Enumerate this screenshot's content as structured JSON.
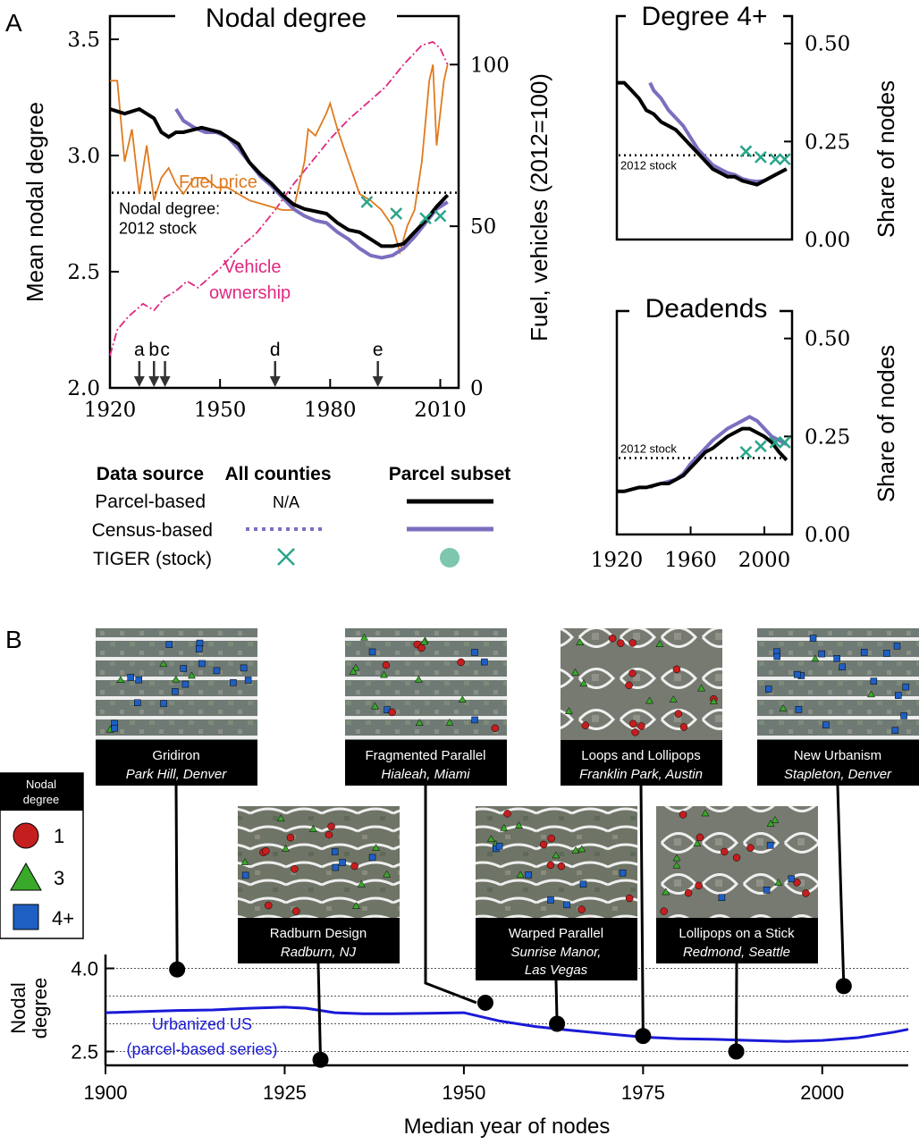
{
  "panel_a_label": "A",
  "panel_b_label": "B",
  "chart_data": [
    {
      "type": "line",
      "title": "Nodal degree",
      "xlabel": "",
      "ylabel": "Mean nodal degree",
      "y2label": "Fuel, vehicles (2012=100)",
      "xlim": [
        1920,
        2015
      ],
      "ylim": [
        2.0,
        3.6
      ],
      "y2lim": [
        0,
        115
      ],
      "xticks": [
        1920,
        1950,
        1980,
        2010
      ],
      "yticks": [
        2.0,
        2.5,
        3.0,
        3.5
      ],
      "y2ticks": [
        0,
        50,
        100
      ],
      "reference_line": {
        "y": 2.84,
        "label_lines": [
          "Nodal degree:",
          "2012 stock"
        ]
      },
      "annotations": {
        "fuel": "Fuel price",
        "vehicle_lines": [
          "Vehicle",
          "ownership"
        ]
      },
      "event_markers": [
        {
          "label": "a",
          "x": 1928
        },
        {
          "label": "b",
          "x": 1932
        },
        {
          "label": "c",
          "x": 1935
        },
        {
          "label": "d",
          "x": 1965
        },
        {
          "label": "e",
          "x": 1993
        }
      ],
      "colors": {
        "parcel": "#000000",
        "census": "#7b6fbf",
        "fuel": "#e07a1e",
        "vehicle": "#e0287f",
        "tiger": "#2aa58a"
      },
      "series": [
        {
          "key": "parcel",
          "x": [
            1920,
            1924,
            1928,
            1932,
            1934,
            1936,
            1938,
            1940,
            1945,
            1950,
            1955,
            1958,
            1961,
            1964,
            1967,
            1970,
            1973,
            1976,
            1979,
            1982,
            1985,
            1988,
            1991,
            1994,
            1997,
            2000,
            2003,
            2006,
            2009,
            2012
          ],
          "y": [
            3.2,
            3.18,
            3.2,
            3.16,
            3.1,
            3.08,
            3.1,
            3.1,
            3.12,
            3.1,
            3.05,
            2.97,
            2.92,
            2.88,
            2.83,
            2.79,
            2.77,
            2.76,
            2.75,
            2.71,
            2.68,
            2.67,
            2.64,
            2.61,
            2.61,
            2.62,
            2.67,
            2.72,
            2.78,
            2.83
          ]
        },
        {
          "key": "census",
          "x": [
            1938,
            1940,
            1943,
            1946,
            1949,
            1952,
            1955,
            1958,
            1961,
            1964,
            1967,
            1970,
            1973,
            1976,
            1979,
            1982,
            1985,
            1988,
            1991,
            1994,
            1997,
            2000,
            2003,
            2006,
            2009,
            2012
          ],
          "y": [
            3.2,
            3.15,
            3.12,
            3.1,
            3.1,
            3.08,
            3.03,
            2.97,
            2.91,
            2.87,
            2.82,
            2.77,
            2.74,
            2.72,
            2.71,
            2.67,
            2.64,
            2.6,
            2.57,
            2.56,
            2.57,
            2.6,
            2.65,
            2.71,
            2.77,
            2.8
          ]
        },
        {
          "key": "fuel",
          "x": [
            1920,
            1922,
            1924,
            1926,
            1928,
            1930,
            1932,
            1934,
            1936,
            1938,
            1940,
            1943,
            1946,
            1949,
            1952,
            1955,
            1958,
            1961,
            1964,
            1967,
            1970,
            1973,
            1974,
            1976,
            1979,
            1980,
            1982,
            1985,
            1988,
            1991,
            1994,
            1997,
            1999,
            2001,
            2003,
            2005,
            2007,
            2008,
            2009,
            2011,
            2012
          ],
          "y": [
            95,
            95,
            70,
            80,
            60,
            75,
            58,
            65,
            68,
            63,
            60,
            65,
            65,
            62,
            62,
            60,
            58,
            57,
            56,
            55,
            55,
            70,
            80,
            78,
            85,
            88,
            80,
            70,
            60,
            58,
            55,
            50,
            42,
            50,
            55,
            70,
            95,
            100,
            75,
            95,
            100
          ]
        },
        {
          "key": "vehicle",
          "x": [
            1920,
            1922,
            1925,
            1929,
            1932,
            1935,
            1938,
            1941,
            1944,
            1947,
            1950,
            1955,
            1960,
            1965,
            1970,
            1975,
            1980,
            1985,
            1990,
            1995,
            2000,
            2005,
            2008,
            2010,
            2012
          ],
          "y": [
            10,
            18,
            22,
            26,
            24,
            28,
            30,
            33,
            31,
            34,
            37,
            43,
            48,
            55,
            63,
            70,
            77,
            83,
            88,
            93,
            100,
            106,
            107,
            105,
            100
          ]
        },
        {
          "key": "tiger",
          "x": [
            1990,
            1998,
            2006,
            2010
          ],
          "y": [
            2.8,
            2.75,
            2.73,
            2.74
          ]
        }
      ]
    },
    {
      "type": "line",
      "title": "Degree 4+",
      "ylabel": "Share of nodes",
      "xlim": [
        1920,
        2015
      ],
      "ylim": [
        0.0,
        0.57
      ],
      "yticks_labels": [
        "0.00",
        "0.25",
        "0.50"
      ],
      "yticks": [
        0.0,
        0.25,
        0.5
      ],
      "reference_line": {
        "y": 0.215,
        "label": "2012 stock"
      },
      "series": [
        {
          "key": "parcel",
          "x": [
            1920,
            1924,
            1928,
            1932,
            1936,
            1940,
            1944,
            1948,
            1952,
            1956,
            1960,
            1964,
            1968,
            1972,
            1976,
            1980,
            1984,
            1988,
            1992,
            1996,
            2000,
            2004,
            2008,
            2012
          ],
          "y": [
            0.4,
            0.4,
            0.38,
            0.36,
            0.33,
            0.32,
            0.3,
            0.29,
            0.28,
            0.26,
            0.24,
            0.22,
            0.2,
            0.18,
            0.17,
            0.16,
            0.16,
            0.15,
            0.145,
            0.14,
            0.15,
            0.16,
            0.17,
            0.18
          ]
        },
        {
          "key": "census",
          "x": [
            1938,
            1940,
            1944,
            1948,
            1952,
            1956,
            1960,
            1964,
            1968,
            1972,
            1976,
            1980,
            1984,
            1988,
            1992,
            1996,
            2000,
            2004,
            2008,
            2012
          ],
          "y": [
            0.4,
            0.38,
            0.36,
            0.33,
            0.31,
            0.29,
            0.26,
            0.23,
            0.21,
            0.19,
            0.18,
            0.17,
            0.165,
            0.155,
            0.15,
            0.148,
            0.15,
            0.16,
            0.17,
            0.18
          ]
        },
        {
          "key": "tiger",
          "x": [
            1990,
            1998,
            2006,
            2011
          ],
          "y": [
            0.225,
            0.21,
            0.205,
            0.205
          ]
        }
      ]
    },
    {
      "type": "line",
      "title": "Deadends",
      "ylabel": "Share of nodes",
      "xlim": [
        1920,
        2015
      ],
      "xticks": [
        1920,
        1960,
        2000
      ],
      "ylim": [
        0.0,
        0.57
      ],
      "yticks_labels": [
        "0.00",
        "0.25",
        "0.50"
      ],
      "yticks": [
        0.0,
        0.25,
        0.5
      ],
      "reference_line": {
        "y": 0.195,
        "label": "2012 stock"
      },
      "series": [
        {
          "key": "parcel",
          "x": [
            1920,
            1924,
            1928,
            1932,
            1936,
            1940,
            1944,
            1948,
            1952,
            1956,
            1960,
            1964,
            1968,
            1972,
            1976,
            1980,
            1984,
            1988,
            1992,
            1996,
            2000,
            2004,
            2008,
            2012
          ],
          "y": [
            0.11,
            0.11,
            0.115,
            0.12,
            0.12,
            0.125,
            0.13,
            0.13,
            0.14,
            0.15,
            0.17,
            0.19,
            0.21,
            0.22,
            0.235,
            0.25,
            0.26,
            0.27,
            0.27,
            0.26,
            0.25,
            0.235,
            0.21,
            0.19
          ]
        },
        {
          "key": "census",
          "x": [
            1938,
            1940,
            1944,
            1948,
            1952,
            1956,
            1960,
            1964,
            1968,
            1972,
            1976,
            1980,
            1984,
            1988,
            1992,
            1996,
            2000,
            2004,
            2008,
            2012
          ],
          "y": [
            0.12,
            0.125,
            0.13,
            0.135,
            0.14,
            0.155,
            0.18,
            0.2,
            0.22,
            0.24,
            0.255,
            0.27,
            0.28,
            0.29,
            0.3,
            0.29,
            0.27,
            0.25,
            0.24,
            0.23
          ]
        },
        {
          "key": "tiger",
          "x": [
            1990,
            1998,
            2006,
            2011
          ],
          "y": [
            0.21,
            0.225,
            0.235,
            0.235
          ]
        }
      ]
    },
    {
      "type": "line",
      "title": "",
      "xlabel": "Median year of nodes",
      "ylabel_lines": [
        "Nodal",
        "degree"
      ],
      "xlim": [
        1900,
        2012
      ],
      "xticks": [
        1900,
        1925,
        1950,
        1975,
        2000
      ],
      "ylim": [
        2.25,
        4.25
      ],
      "yticks": [
        2.5,
        4.0
      ],
      "ytick_labels": [
        "2.5",
        "4.0"
      ],
      "gridlines": [
        2.5,
        3.0,
        3.5,
        4.0
      ],
      "series_label_lines": [
        "Urbanized US",
        "(parcel-based series)"
      ],
      "series_color": "#1a1ad6",
      "series": [
        {
          "key": "urbanized",
          "x": [
            1900,
            1905,
            1910,
            1915,
            1920,
            1925,
            1928,
            1932,
            1936,
            1940,
            1945,
            1950,
            1955,
            1960,
            1965,
            1970,
            1975,
            1980,
            1985,
            1990,
            1995,
            2000,
            2005,
            2010,
            2012
          ],
          "y": [
            3.2,
            3.22,
            3.24,
            3.25,
            3.28,
            3.3,
            3.28,
            3.2,
            3.18,
            3.18,
            3.19,
            3.2,
            3.05,
            2.95,
            2.88,
            2.82,
            2.76,
            2.73,
            2.72,
            2.7,
            2.68,
            2.7,
            2.75,
            2.85,
            2.9
          ]
        }
      ],
      "points": [
        {
          "x": 1910,
          "y": 3.98
        },
        {
          "x": 1930,
          "y": 2.35
        },
        {
          "x": 1953,
          "y": 3.38
        },
        {
          "x": 1963,
          "y": 3.0
        },
        {
          "x": 1975,
          "y": 2.78
        },
        {
          "x": 1988,
          "y": 2.5
        },
        {
          "x": 2003,
          "y": 3.68
        }
      ]
    }
  ],
  "legend": {
    "headers": [
      "Data source",
      "All counties",
      "Parcel subset"
    ],
    "rows": [
      {
        "label": "Parcel-based",
        "all": "N/A"
      },
      {
        "label": "Census-based"
      },
      {
        "label": "TIGER (stock)"
      }
    ]
  },
  "node_legend": {
    "title_lines": [
      "Nodal",
      "degree"
    ],
    "items": [
      "1",
      "3",
      "4+"
    ],
    "colors": {
      "1": "#c41e1e",
      "3": "#3aa82a",
      "4+": "#1e5fc4"
    }
  },
  "neighborhoods": [
    {
      "name": "Gridiron",
      "place": "Park Hill, Denver"
    },
    {
      "name": "Fragmented Parallel",
      "place": "Hialeah, Miami"
    },
    {
      "name": "Loops and Lollipops",
      "place": "Franklin Park, Austin"
    },
    {
      "name": "New Urbanism",
      "place": "Stapleton, Denver"
    },
    {
      "name": "Radburn Design",
      "place": "Radburn, NJ"
    },
    {
      "name": "Warped Parallel",
      "place_lines": [
        "Sunrise Manor,",
        "Las Vegas"
      ]
    },
    {
      "name": "Lollipops on a Stick",
      "place": "Redmond, Seattle"
    }
  ]
}
